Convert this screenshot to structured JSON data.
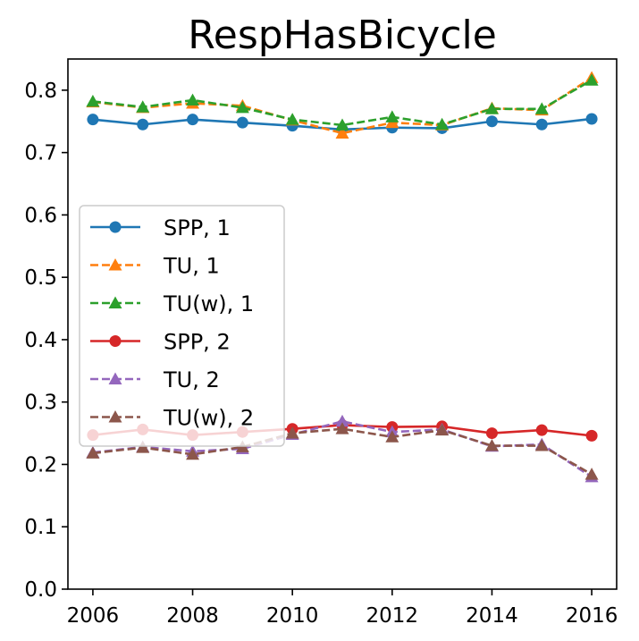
{
  "chart_data": {
    "type": "line",
    "title": "RespHasBicycle",
    "xlabel": "",
    "ylabel": "",
    "xlim": [
      2005.5,
      2016.5
    ],
    "ylim": [
      0.0,
      0.85
    ],
    "x": [
      2006,
      2007,
      2008,
      2009,
      2010,
      2011,
      2012,
      2013,
      2014,
      2015,
      2016
    ],
    "xticks": [
      2006,
      2008,
      2010,
      2012,
      2014,
      2016
    ],
    "yticks": [
      0.0,
      0.1,
      0.2,
      0.3,
      0.4,
      0.5,
      0.6,
      0.7,
      0.8
    ],
    "ytick_labels": [
      "0.0",
      "0.1",
      "0.2",
      "0.3",
      "0.4",
      "0.5",
      "0.6",
      "0.7",
      "0.8"
    ],
    "grid": false,
    "legend_position": "center-left",
    "series": [
      {
        "name": "SPP, 1",
        "color": "#1f77b4",
        "marker": "circle",
        "linestyle": "solid",
        "values": [
          0.753,
          0.745,
          0.753,
          0.748,
          0.743,
          0.737,
          0.74,
          0.739,
          0.75,
          0.745,
          0.754
        ]
      },
      {
        "name": "TU, 1",
        "color": "#ff7f0e",
        "marker": "triangle",
        "linestyle": "dashed",
        "values": [
          0.781,
          0.772,
          0.779,
          0.775,
          0.752,
          0.731,
          0.748,
          0.744,
          0.771,
          0.768,
          0.82
        ]
      },
      {
        "name": "TU(w), 1",
        "color": "#2ca02c",
        "marker": "triangle",
        "linestyle": "dashed",
        "values": [
          0.782,
          0.773,
          0.784,
          0.772,
          0.753,
          0.744,
          0.757,
          0.745,
          0.77,
          0.77,
          0.816
        ]
      },
      {
        "name": "SPP, 2",
        "color": "#d62728",
        "marker": "circle",
        "linestyle": "solid",
        "values": [
          0.247,
          0.256,
          0.247,
          0.252,
          0.257,
          0.263,
          0.26,
          0.261,
          0.25,
          0.255,
          0.246
        ]
      },
      {
        "name": "TU, 2",
        "color": "#9467bd",
        "marker": "triangle",
        "linestyle": "dashed",
        "values": [
          0.219,
          0.228,
          0.221,
          0.225,
          0.248,
          0.269,
          0.252,
          0.256,
          0.229,
          0.232,
          0.18
        ]
      },
      {
        "name": "TU(w), 2",
        "color": "#8c564b",
        "marker": "triangle",
        "linestyle": "dashed",
        "values": [
          0.218,
          0.227,
          0.216,
          0.228,
          0.25,
          0.257,
          0.244,
          0.255,
          0.23,
          0.23,
          0.184
        ]
      }
    ]
  }
}
